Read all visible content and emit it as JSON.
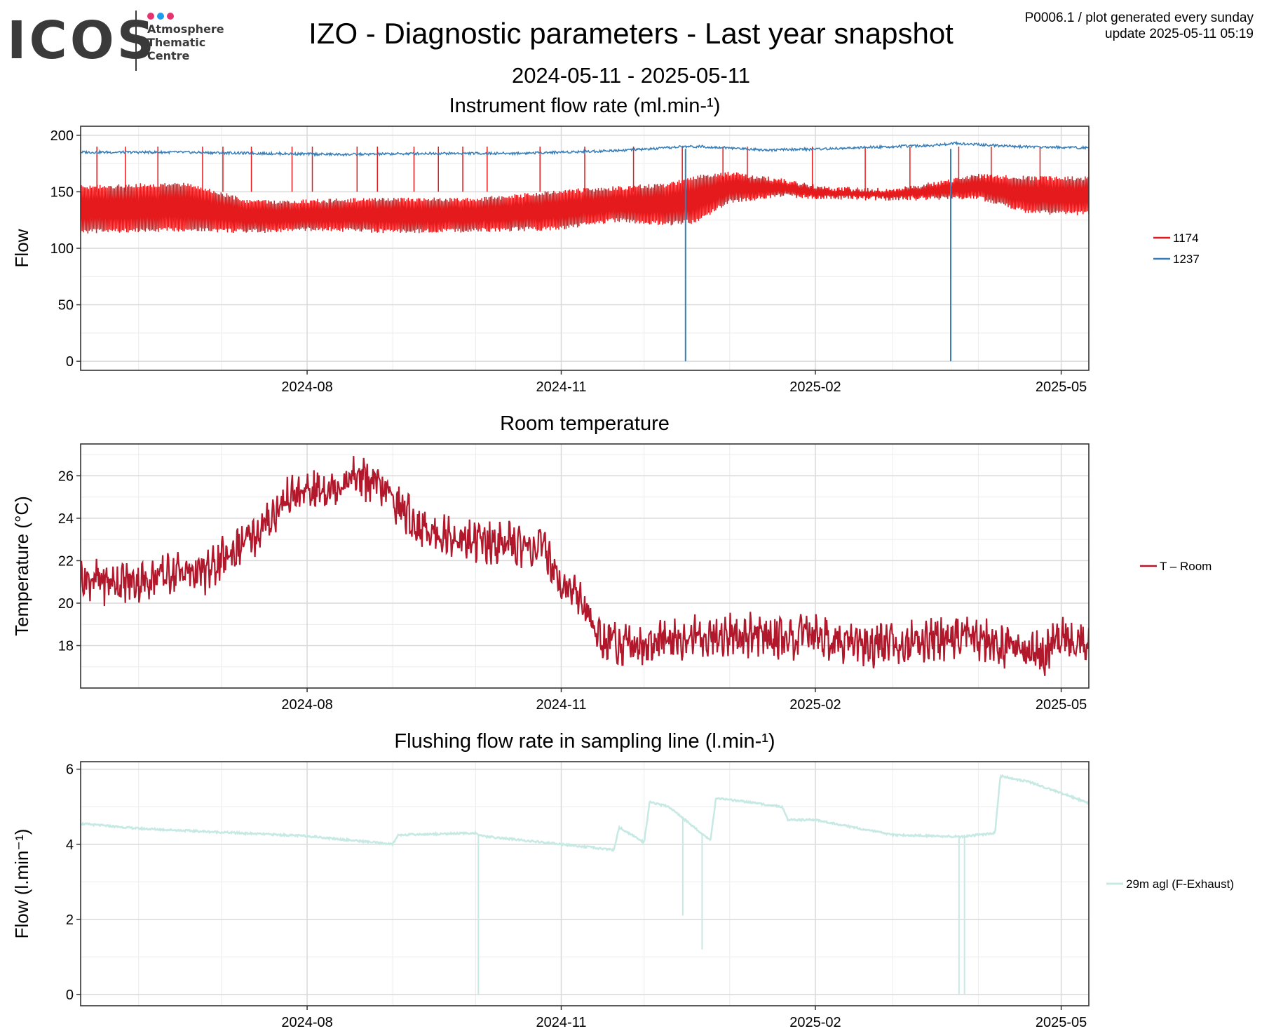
{
  "logo": {
    "text": "ICOS",
    "lines": [
      "Atmosphere",
      "Thematic",
      "Centre"
    ],
    "dot_colors": [
      "#e6336f",
      "#1e9be9",
      "#e6336f"
    ]
  },
  "header": {
    "title": "IZO - Diagnostic parameters - Last year snapshot",
    "date_range": "2024-05-11 - 2025-05-11",
    "plot_id": "P0006.1 / plot generated every sunday",
    "update": "update  2025-05-11 05:19"
  },
  "colors": {
    "flow_1174": "#e41a1c",
    "flow_1237": "#377eb8",
    "room_temp": "#b2182b",
    "flushing": "#c7e9e3",
    "grid_major": "#d9d9d9",
    "grid_minor": "#ececec"
  },
  "chart_data": [
    {
      "type": "line",
      "title": "Instrument flow rate (ml.min-¹)",
      "ylabel": "Flow",
      "xlabel": "",
      "xlim": [
        "2024-05-11",
        "2025-05-11"
      ],
      "ylim": [
        -8,
        208
      ],
      "yticks": [
        0,
        50,
        100,
        150,
        200
      ],
      "xticks": [
        "2024-08",
        "2024-11",
        "2025-02",
        "2025-05"
      ],
      "grid": true,
      "legend": "right",
      "series": [
        {
          "name": "1174",
          "band": true,
          "x": [
            "2024-05-11",
            "2024-06-05",
            "2024-06-20",
            "2024-07-10",
            "2024-07-20",
            "2024-08-05",
            "2024-09-01",
            "2024-10-01",
            "2024-11-01",
            "2024-11-20",
            "2024-12-10",
            "2024-12-20",
            "2025-01-01",
            "2025-01-20",
            "2025-02-05",
            "2025-03-01",
            "2025-04-01",
            "2025-04-20",
            "2025-05-11"
          ],
          "low": [
            113,
            114,
            115,
            113,
            114,
            115,
            113,
            114,
            116,
            123,
            120,
            122,
            140,
            145,
            143,
            142,
            143,
            130,
            129
          ],
          "high": [
            156,
            158,
            158,
            144,
            143,
            144,
            145,
            145,
            152,
            155,
            158,
            165,
            168,
            162,
            155,
            153,
            166,
            164,
            164
          ]
        },
        {
          "name": "1237",
          "x": [
            "2024-05-11",
            "2024-06-15",
            "2024-07-15",
            "2024-08-15",
            "2024-09-15",
            "2024-10-15",
            "2024-11-15",
            "2024-12-05",
            "2024-12-15",
            "2024-12-22",
            "2025-01-15",
            "2025-02-05",
            "2025-03-01",
            "2025-03-15",
            "2025-03-23",
            "2025-04-15",
            "2025-05-11"
          ],
          "y": [
            185,
            185,
            184,
            183,
            184,
            184,
            186,
            188,
            190,
            190,
            187,
            188,
            190,
            191,
            193,
            190,
            189
          ]
        }
      ]
    },
    {
      "type": "line",
      "title": "Room temperature",
      "ylabel": "Temperature (°C)",
      "xlabel": "",
      "xlim": [
        "2024-05-11",
        "2025-05-11"
      ],
      "ylim": [
        16,
        27.5
      ],
      "yticks": [
        18,
        20,
        22,
        24,
        26
      ],
      "xticks": [
        "2024-08",
        "2024-11",
        "2025-02",
        "2025-05"
      ],
      "grid": true,
      "legend": "right",
      "series": [
        {
          "name": "T – Room",
          "x": [
            "2024-05-11",
            "2024-05-20",
            "2024-06-01",
            "2024-06-15",
            "2024-06-25",
            "2024-07-05",
            "2024-07-15",
            "2024-07-25",
            "2024-08-01",
            "2024-08-10",
            "2024-08-20",
            "2024-08-30",
            "2024-09-10",
            "2024-09-25",
            "2024-10-10",
            "2024-10-25",
            "2024-11-01",
            "2024-11-08",
            "2024-11-15",
            "2024-12-01",
            "2024-12-20",
            "2025-01-05",
            "2025-01-20",
            "2025-02-05",
            "2025-02-20",
            "2025-03-10",
            "2025-03-25",
            "2025-04-10",
            "2025-04-25",
            "2025-05-01",
            "2025-05-11"
          ],
          "y": [
            21.2,
            21.0,
            21.0,
            21.5,
            21.4,
            22.4,
            23.4,
            25.0,
            25.2,
            25.5,
            26.0,
            25.2,
            23.6,
            23.0,
            22.8,
            22.6,
            21.0,
            20.2,
            18.3,
            18.0,
            18.4,
            18.5,
            18.4,
            18.4,
            18.0,
            18.3,
            18.4,
            18.0,
            17.6,
            18.5,
            18.2
          ]
        }
      ]
    },
    {
      "type": "line",
      "title": "Flushing flow rate in sampling line (l.min-¹)",
      "ylabel": "Flow (l.min⁻¹)",
      "xlabel": "",
      "xlim": [
        "2024-05-11",
        "2025-05-11"
      ],
      "ylim": [
        -0.3,
        6.2
      ],
      "yticks": [
        0,
        2,
        4,
        6
      ],
      "xticks": [
        "2024-08",
        "2024-11",
        "2025-02",
        "2025-05"
      ],
      "grid": true,
      "legend": "right",
      "series": [
        {
          "name": "29m agl (F-Exhaust)",
          "x": [
            "2024-05-11",
            "2024-06-01",
            "2024-07-01",
            "2024-08-01",
            "2024-09-01",
            "2024-09-03",
            "2024-10-01",
            "2024-10-03",
            "2024-11-01",
            "2024-11-20",
            "2024-11-22",
            "2024-12-01",
            "2024-12-03",
            "2024-12-10",
            "2024-12-25",
            "2024-12-27",
            "2025-01-05",
            "2025-01-20",
            "2025-01-22",
            "2025-02-01",
            "2025-03-01",
            "2025-03-26",
            "2025-04-07",
            "2025-04-09",
            "2025-04-20",
            "2025-05-11"
          ],
          "y": [
            4.55,
            4.42,
            4.32,
            4.22,
            4.0,
            4.25,
            4.3,
            4.22,
            4.0,
            3.85,
            4.45,
            4.05,
            5.12,
            5.0,
            4.1,
            5.22,
            5.15,
            5.0,
            4.65,
            4.65,
            4.25,
            4.2,
            4.3,
            5.82,
            5.65,
            5.1
          ]
        }
      ]
    }
  ]
}
